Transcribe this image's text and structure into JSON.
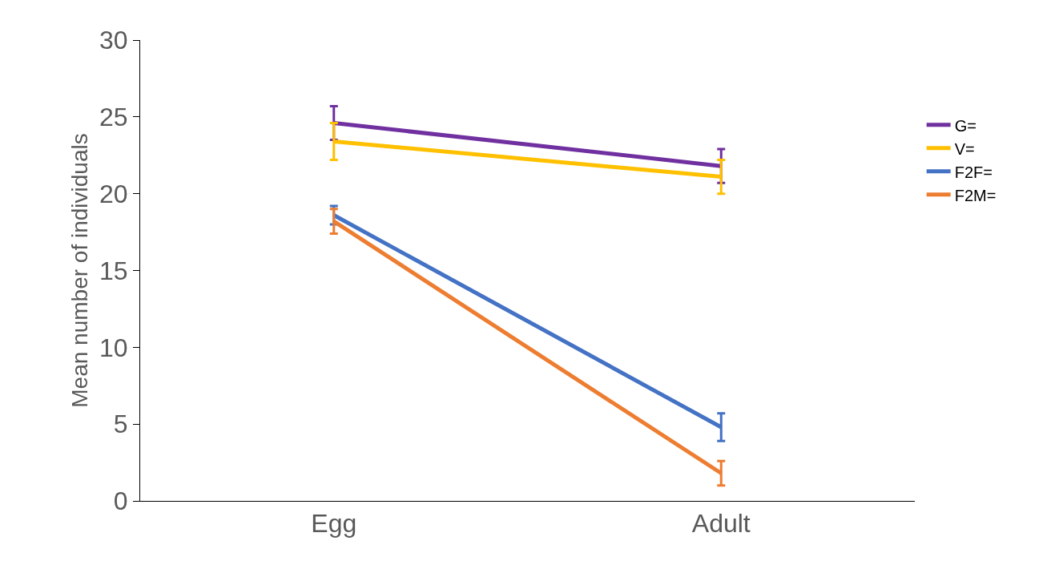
{
  "chart_data": {
    "type": "line",
    "ylabel": "Mean number of individuals",
    "categories": [
      "Egg",
      "Adult"
    ],
    "series": [
      {
        "name": "G=",
        "color": "#7030a0",
        "values": [
          24.6,
          21.8
        ],
        "errors": [
          1.1,
          1.1
        ]
      },
      {
        "name": "V=",
        "color": "#ffc000",
        "values": [
          23.4,
          21.1
        ],
        "errors": [
          1.2,
          1.1
        ]
      },
      {
        "name": "F2F=",
        "color": "#4472c4",
        "values": [
          18.6,
          4.8
        ],
        "errors": [
          0.6,
          0.9
        ]
      },
      {
        "name": "F2M=",
        "color": "#ed7d31",
        "values": [
          18.2,
          1.8
        ],
        "errors": [
          0.8,
          0.8
        ]
      }
    ],
    "ylim": [
      0,
      30
    ],
    "yticks": [
      0,
      5,
      10,
      15,
      20,
      25,
      30
    ],
    "grid": false,
    "legend": "right",
    "marker": "none",
    "line_style": "solid"
  }
}
